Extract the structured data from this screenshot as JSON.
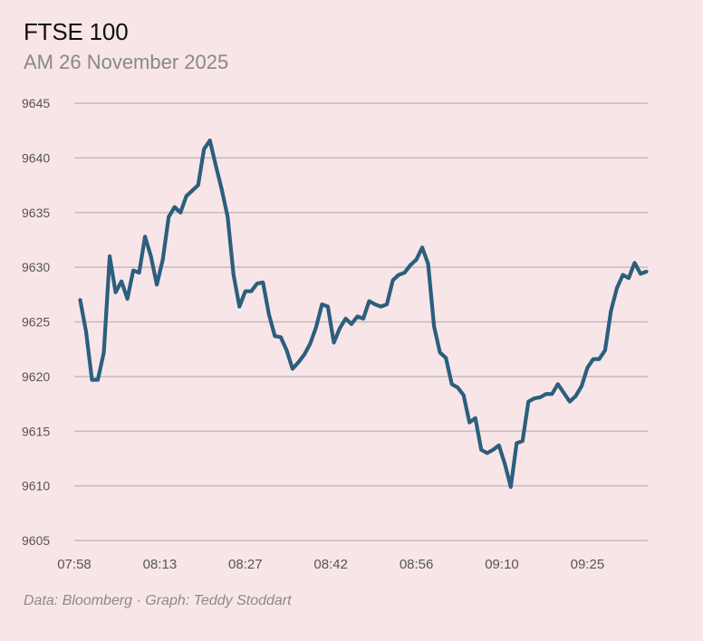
{
  "header": {
    "title": "FTSE 100",
    "subtitle": "AM 26 November 2025"
  },
  "footer": {
    "credit": "Data: Bloomberg · Graph: Teddy Stoddart"
  },
  "colors": {
    "background": "#f8e5e7",
    "line": "#2b5f7d",
    "grid": "#c0bcbd"
  },
  "chart_data": {
    "type": "line",
    "title": "FTSE 100",
    "subtitle": "AM 26 November 2025",
    "xlabel": "",
    "ylabel": "",
    "grid": true,
    "legend": "none",
    "ylim": [
      9605,
      9645
    ],
    "yticks": [
      9605,
      9610,
      9615,
      9620,
      9625,
      9630,
      9635,
      9640,
      9645
    ],
    "xticks": [
      "07:58",
      "08:13",
      "08:27",
      "08:42",
      "08:56",
      "09:10",
      "09:25"
    ],
    "x_start_time": "07:58",
    "x_tick_interval_minutes": 14.5,
    "series": [
      {
        "name": "FTSE 100",
        "x_minutes_from_start": [
          1,
          2,
          3,
          4,
          5,
          6,
          7,
          8,
          9,
          10,
          11,
          12,
          13,
          14,
          15,
          16,
          17,
          18,
          19,
          20,
          21,
          22,
          23,
          24,
          25,
          26,
          27,
          28,
          29,
          30,
          31,
          32,
          33,
          34,
          35,
          36,
          37,
          38,
          39,
          40,
          41,
          42,
          43,
          44,
          45,
          46,
          47,
          48,
          49,
          50,
          51,
          52,
          53,
          54,
          55,
          56,
          57,
          58,
          59,
          60,
          61,
          62,
          63,
          64,
          65,
          66,
          67,
          68,
          69,
          70,
          71,
          72,
          73,
          74,
          75,
          76,
          77,
          78,
          79,
          80,
          81,
          82,
          83,
          84,
          85,
          86,
          87,
          88,
          89,
          90,
          91,
          92,
          93,
          94,
          95,
          96,
          97
        ],
        "values": [
          9627.0,
          9624.1,
          9619.7,
          9619.7,
          9622.2,
          9631.0,
          9627.7,
          9628.7,
          9627.1,
          9629.7,
          9629.5,
          9632.8,
          9631.0,
          9628.4,
          9630.7,
          9634.6,
          9635.5,
          9635.0,
          9636.5,
          9637.0,
          9637.5,
          9640.8,
          9641.6,
          9639.3,
          9637.1,
          9634.6,
          9629.3,
          9626.4,
          9627.8,
          9627.8,
          9628.5,
          9628.6,
          9625.7,
          9623.7,
          9623.6,
          9622.4,
          9620.7,
          9621.3,
          9622.0,
          9623.0,
          9624.5,
          9626.6,
          9626.4,
          9623.1,
          9624.4,
          9625.3,
          9624.8,
          9625.5,
          9625.3,
          9626.9,
          9626.6,
          9626.4,
          9626.6,
          9628.8,
          9629.3,
          9629.5,
          9630.2,
          9630.7,
          9631.8,
          9630.3,
          9624.6,
          9622.2,
          9621.7,
          9619.3,
          9619.0,
          9618.3,
          9615.8,
          9616.2,
          9613.3,
          9613.0,
          9613.3,
          9613.7,
          9612.0,
          9609.9,
          9613.9,
          9614.1,
          9617.7,
          9618.0,
          9618.1,
          9618.4,
          9618.4,
          9619.3,
          9618.5,
          9617.7,
          9618.2,
          9619.1,
          9620.8,
          9621.6,
          9621.6,
          9622.4,
          9626.0,
          9628.1,
          9629.3,
          9629.0,
          9630.4,
          9629.4,
          9629.6
        ]
      }
    ]
  }
}
